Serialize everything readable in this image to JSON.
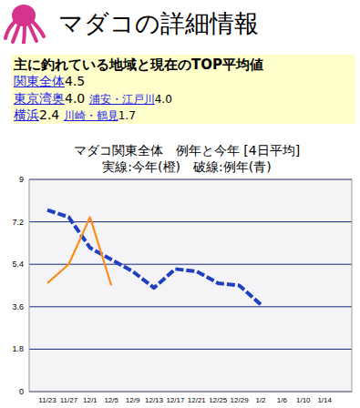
{
  "header": {
    "title": "マダコの詳細情報",
    "box_title": "主に釣れている地域と現在のTOP平均値",
    "areas": [
      {
        "name": "関東全体",
        "value": 4.5
      },
      {
        "name": "東京湾奥",
        "value": 4,
        "value_label": "4.0",
        "subareas": [
          {
            "name": "浦安・江戸川",
            "value": 4,
            "value_label": "4.0"
          }
        ]
      },
      {
        "name": "横浜",
        "value": 2.4,
        "subareas": [
          {
            "name": "川崎・鶴見",
            "value": 1.7
          }
        ]
      }
    ]
  },
  "chart_data": {
    "type": "line",
    "title": "マダコ関東全体　例年と今年 [4日平均]",
    "subtitle": "実線:今年(橙)　破線:例年(青)",
    "categories": [
      "11/23",
      "11/27",
      "12/1",
      "12/5",
      "12/9",
      "12/13",
      "12/17",
      "12/21",
      "12/25",
      "12/29",
      "1/2",
      "1/6",
      "1/10",
      "1/14"
    ],
    "series": [
      {
        "color": "#ff8c1a",
        "line_style": "solid",
        "values": [
          4.6,
          5.4,
          7.4,
          4.5,
          null,
          null,
          null,
          null,
          null,
          null,
          null,
          null,
          null,
          null
        ]
      },
      {
        "color": "#1f3fc0",
        "line_style": "dashed",
        "values": [
          7.7,
          7.4,
          6.1,
          5.6,
          5.1,
          4.4,
          5.2,
          5.1,
          4.6,
          4.5,
          3.7,
          null,
          null,
          null
        ]
      }
    ],
    "ylim": [
      0,
      9
    ],
    "yticks": [
      0,
      1.8,
      3.6,
      5.4,
      7.2,
      9
    ],
    "grid": true
  }
}
